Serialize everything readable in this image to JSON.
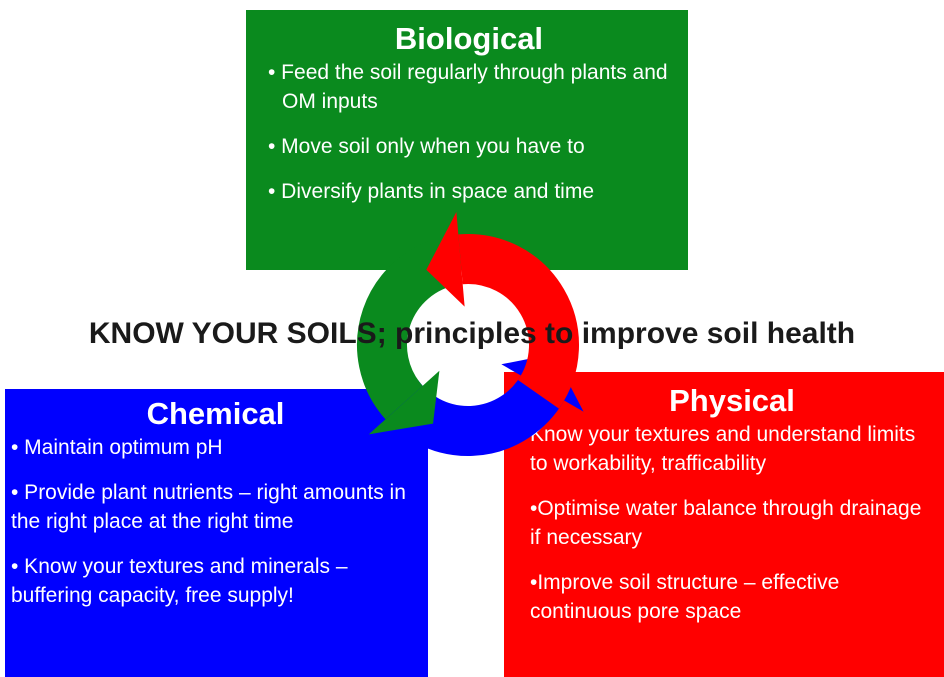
{
  "title": "KNOW YOUR SOILS; principles to improve soil health",
  "boxes": [
    {
      "heading": "Biological",
      "items": [
        "•  Feed the soil  regularly through plants and OM inputs",
        "•  Move soil only when you have to",
        "• Diversify plants in space and time"
      ]
    },
    {
      "heading": "Chemical",
      "items": [
        "• Maintain optimum pH",
        "• Provide plant nutrients – right amounts in the right place at the right time",
        "• Know your textures and minerals – buffering capacity, free supply!"
      ]
    },
    {
      "heading": "Physical",
      "items": [
        " Know your textures and understand limits to workability, trafficability",
        "•Optimise water balance through drainage if necessary",
        "•Improve soil structure – effective continuous pore space"
      ]
    }
  ]
}
